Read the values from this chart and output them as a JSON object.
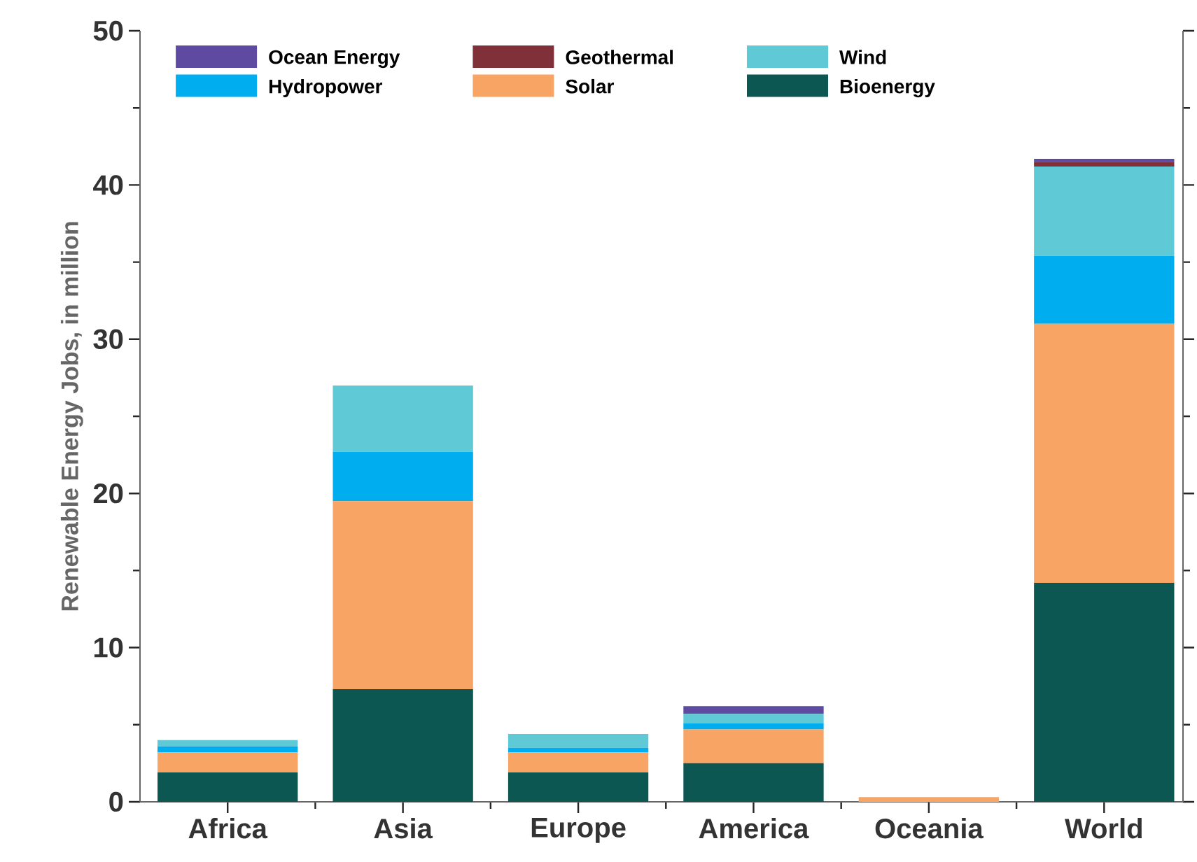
{
  "chart_data": {
    "type": "bar",
    "stacked": true,
    "ylabel": "Renewable Energy Jobs, in million",
    "categories": [
      "Africa",
      "Asia",
      "Europe",
      "America",
      "Oceania",
      "World"
    ],
    "series": [
      {
        "name": "Bioenergy",
        "color": "#0d5753",
        "values": [
          1.9,
          7.3,
          1.9,
          2.5,
          0,
          14.2
        ]
      },
      {
        "name": "Solar",
        "color": "#f7a464",
        "values": [
          1.3,
          12.2,
          1.3,
          2.2,
          0.3,
          16.8
        ]
      },
      {
        "name": "Hydropower",
        "color": "#00adef",
        "values": [
          0.4,
          3.2,
          0.3,
          0.4,
          0,
          4.4
        ]
      },
      {
        "name": "Wind",
        "color": "#5fc9d6",
        "values": [
          0.4,
          4.3,
          0.9,
          0.6,
          0,
          5.8
        ]
      },
      {
        "name": "Geothermal",
        "color": "#7f3038",
        "values": [
          0,
          0,
          0,
          0,
          0,
          0.3
        ]
      },
      {
        "name": "Ocean Energy",
        "color": "#5e4aa0",
        "values": [
          0,
          0,
          0,
          0.5,
          0,
          0.2
        ]
      }
    ],
    "ylim": [
      0,
      50
    ],
    "yticks": [
      0,
      10,
      20,
      30,
      40,
      50
    ],
    "legend": "top left",
    "grid": false
  }
}
